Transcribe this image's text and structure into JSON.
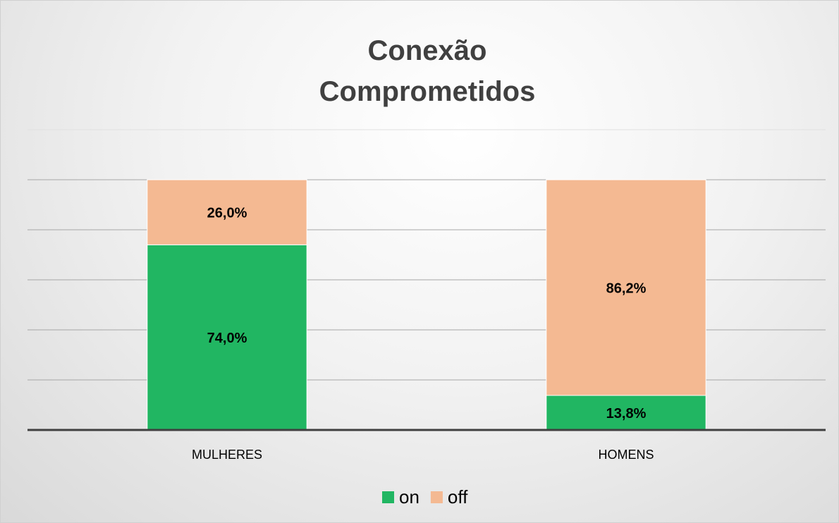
{
  "chart_data": {
    "type": "stacked_bar",
    "title": "Conexão Comprometidos",
    "categories": [
      "MULHERES",
      "HOMENS"
    ],
    "series": [
      {
        "name": "on",
        "color": "#21b662",
        "values": [
          74.0,
          13.8
        ],
        "value_labels": [
          "74,0%",
          "13,8%"
        ]
      },
      {
        "name": "off",
        "color": "#f4b992",
        "values": [
          26.0,
          86.2
        ],
        "value_labels": [
          "26,0%",
          "86,2%"
        ]
      }
    ],
    "ylim": [
      0,
      120
    ],
    "yticks": [
      0,
      20,
      40,
      60,
      80,
      100,
      120
    ],
    "grid": true,
    "legend": "bottom"
  }
}
